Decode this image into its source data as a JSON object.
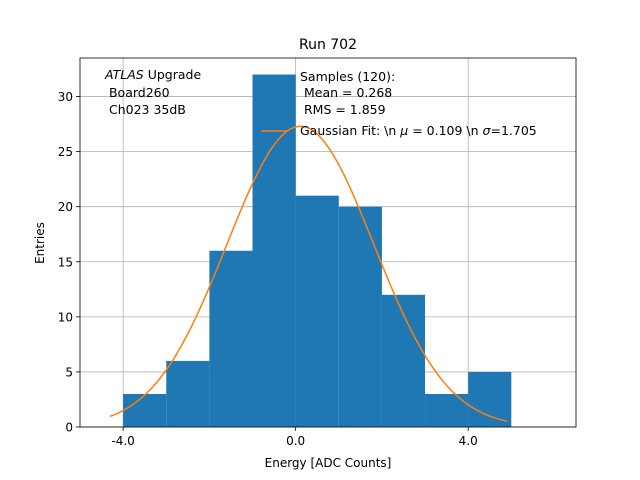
{
  "chart_data": {
    "type": "bar",
    "title": "Run 702",
    "xlabel": "Energy [ADC Counts]",
    "ylabel": "Entries",
    "xlim": [
      -5.0,
      6.5
    ],
    "ylim": [
      0,
      33.5
    ],
    "xticks": [
      -4.0,
      0.0,
      4.0
    ],
    "xtick_labels": [
      "-4.0",
      "0.0",
      "4.0"
    ],
    "yticks": [
      0,
      5,
      10,
      15,
      20,
      25,
      30
    ],
    "ytick_labels": [
      "0",
      "5",
      "10",
      "15",
      "20",
      "25",
      "30"
    ],
    "grid": true,
    "histogram": {
      "name": "Samples (120)",
      "bin_edges": [
        -4,
        -3,
        -2,
        -1,
        0,
        1,
        2,
        3,
        4,
        5
      ],
      "counts": [
        3,
        6,
        16,
        32,
        21,
        20,
        12,
        3,
        5
      ],
      "color": "#1f77b4"
    },
    "fit": {
      "name": "Gaussian Fit",
      "mu": 0.109,
      "sigma": 1.705,
      "amplitude": 27.3,
      "x_range": [
        -4.3,
        4.9
      ],
      "color": "#ff7f0e"
    },
    "annotations": {
      "atlas_italic": "ATLAS",
      "atlas_rest": " Upgrade",
      "board": " Board260",
      "channel": " Ch023 35dB"
    },
    "stats": {
      "samples": "Samples (120):",
      "mean": " Mean = 0.268",
      "rms": " RMS = 1.859"
    },
    "legend": {
      "fit_prefix": "Gaussian Fit: \\n ",
      "mu_symbol": "μ",
      "fit_mid": " = 0.109 \\n ",
      "sigma_symbol": "σ",
      "fit_suffix": "=1.705",
      "placement": "top-right"
    }
  }
}
